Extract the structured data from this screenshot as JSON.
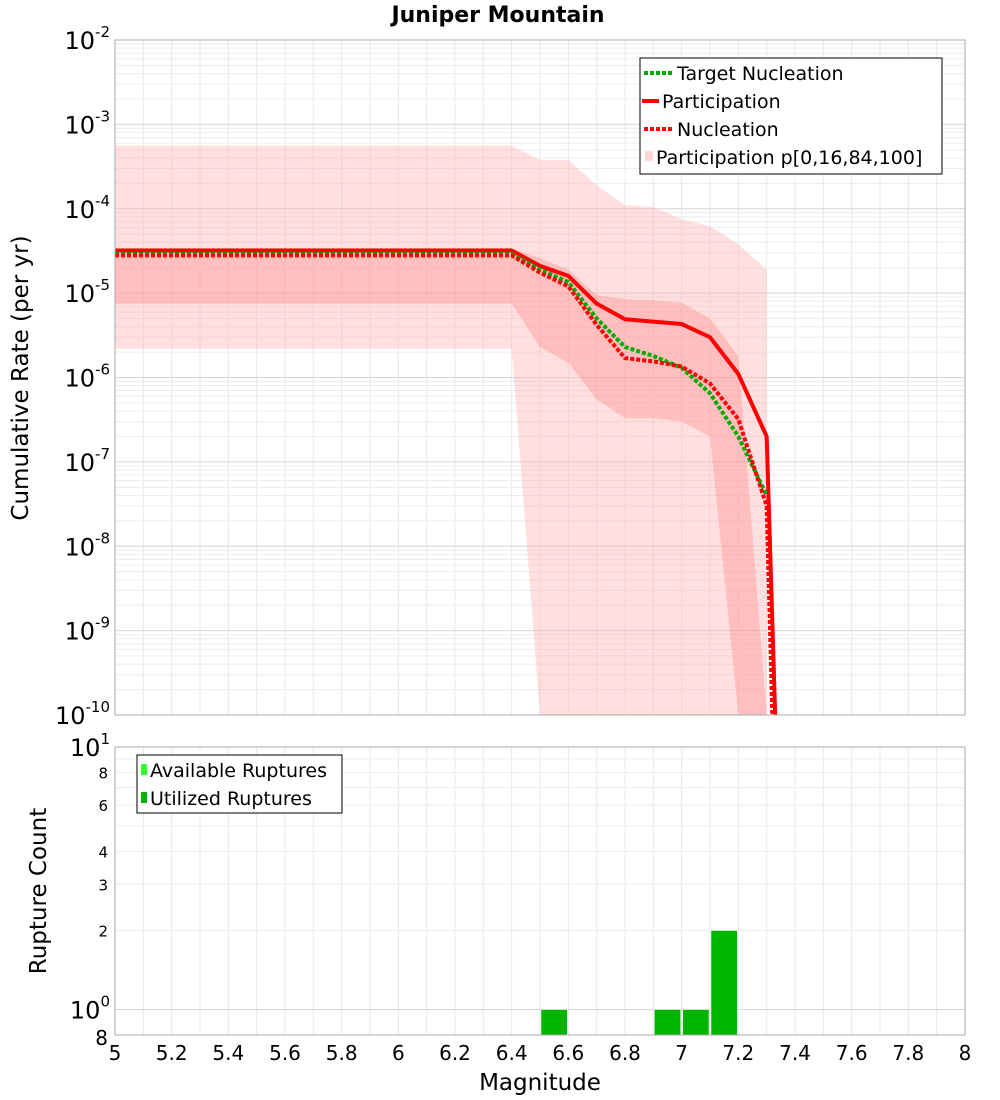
{
  "chart_data": [
    {
      "type": "line",
      "title": "Juniper Mountain",
      "ylabel": "Cumulative Rate (per yr)",
      "xlabel": "",
      "xlim": [
        5,
        8
      ],
      "ylim": [
        1e-10,
        0.01
      ],
      "yscale": "log",
      "grid": true,
      "legend_position": "top-right",
      "y_tick_exponents": [
        "-2",
        "-3",
        "-4",
        "-5",
        "-6",
        "-7",
        "-8",
        "-9",
        "-10"
      ],
      "y_tick_base": "10",
      "series": [
        {
          "name": "Target Nucleation",
          "style": "dotted",
          "color": "#00aa00",
          "x": [
            5.0,
            6.4,
            6.5,
            6.6,
            6.7,
            6.8,
            6.9,
            7.0,
            7.1,
            7.2,
            7.3
          ],
          "y": [
            2.9e-05,
            2.9e-05,
            1.9e-05,
            1.35e-05,
            5e-06,
            2.3e-06,
            1.8e-06,
            1.3e-06,
            6.5e-07,
            2e-07,
            4e-08
          ]
        },
        {
          "name": "Participation",
          "style": "solid",
          "color": "#ff0000",
          "x": [
            5.0,
            6.4,
            6.5,
            6.6,
            6.7,
            6.8,
            6.9,
            7.0,
            7.1,
            7.2,
            7.3,
            7.33
          ],
          "y": [
            3.2e-05,
            3.2e-05,
            2.1e-05,
            1.6e-05,
            7.5e-06,
            4.9e-06,
            4.6e-06,
            4.3e-06,
            3e-06,
            1.1e-06,
            2e-07,
            1e-10
          ]
        },
        {
          "name": "Nucleation",
          "style": "dotted",
          "color": "#ff0000",
          "x": [
            5.0,
            6.4,
            6.5,
            6.6,
            6.7,
            6.8,
            6.9,
            7.0,
            7.1,
            7.2,
            7.3,
            7.32
          ],
          "y": [
            2.8e-05,
            2.8e-05,
            1.75e-05,
            1.2e-05,
            4.2e-06,
            1.7e-06,
            1.55e-06,
            1.35e-06,
            8.5e-07,
            3.2e-07,
            3e-08,
            1e-10
          ]
        },
        {
          "name": "Participation p[0,16,84,100]",
          "style": "band",
          "color": "#ffc8c8",
          "x": [
            5.0,
            6.4,
            6.5,
            6.6,
            6.7,
            6.8,
            6.9,
            7.0,
            7.1,
            7.2,
            7.3
          ],
          "p0": [
            2.2e-06,
            2.2e-06,
            1e-10,
            1e-10,
            1e-10,
            1e-10,
            1e-10,
            1e-10,
            1e-10,
            1e-10,
            1e-10
          ],
          "p16": [
            7.5e-06,
            7.5e-06,
            2.3e-06,
            1.5e-06,
            5.5e-07,
            3.3e-07,
            3.3e-07,
            3e-07,
            2e-07,
            1e-10,
            1e-10
          ],
          "p84": [
            3.4e-05,
            3.4e-05,
            2.6e-05,
            1.9e-05,
            9.5e-06,
            8.5e-06,
            8.2e-06,
            7.7e-06,
            5e-06,
            1.8e-06,
            1e-10
          ],
          "p100": [
            0.00056,
            0.00056,
            0.00038,
            0.00038,
            0.00019,
            0.00011,
            0.000105,
            7.5e-05,
            6.2e-05,
            3.8e-05,
            1.9e-05
          ]
        }
      ]
    },
    {
      "type": "bar",
      "xlabel": "Magnitude",
      "ylabel": "Rupture Count",
      "xlim": [
        5,
        8
      ],
      "ylim": [
        0.8,
        10
      ],
      "yscale": "log",
      "grid": true,
      "legend_position": "top-left",
      "x_ticks": [
        "5",
        "5.2",
        "5.4",
        "5.6",
        "5.8",
        "6",
        "6.2",
        "6.4",
        "6.6",
        "6.8",
        "7",
        "7.2",
        "7.4",
        "7.6",
        "7.8",
        "8"
      ],
      "y_major_ticks": [
        {
          "base": "10",
          "exp": "1"
        },
        {
          "base": "10",
          "exp": "0"
        }
      ],
      "y_minor_ticks": [
        "8",
        "6",
        "4",
        "3",
        "2",
        "8"
      ],
      "series": [
        {
          "name": "Available Ruptures",
          "color": "#33ff33",
          "x": [],
          "values": []
        },
        {
          "name": "Utilized Ruptures",
          "color": "#00b400",
          "x": [
            6.55,
            6.95,
            7.05,
            7.15
          ],
          "values": [
            1,
            1,
            1,
            2
          ]
        }
      ]
    }
  ]
}
